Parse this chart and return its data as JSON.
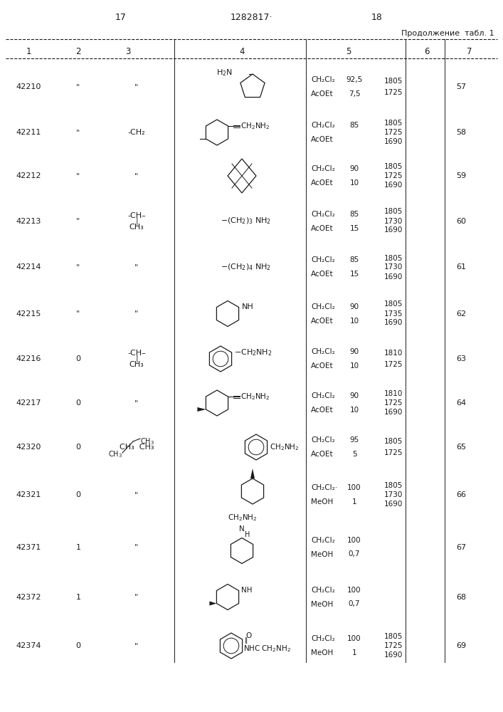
{
  "page_left": "17",
  "page_center": "1282817·",
  "page_right": "18",
  "continuation": "Продолжение  табл. 1",
  "col_headers": [
    "1",
    "2",
    "3",
    "4",
    "5",
    "6",
    "7"
  ],
  "bg_color": "#ffffff",
  "text_color": "#1a1a1a",
  "font_size": 8.0,
  "rows": [
    {
      "col1": "42210",
      "col2": "\"",
      "col3": "\"",
      "col4_shape": "cyclopentane_amine",
      "col5a": "CH₂Cl₂",
      "col5b": "AcOEt",
      "col5va": "92,5",
      "col5vb": "7,5",
      "col6a": "1805",
      "col6b": "1725",
      "col6c": "",
      "col7": "57"
    },
    {
      "col1": "42211",
      "col2": "\"",
      "col3": "-CH₂",
      "col4_shape": "cyclohex_stereo_CH2NH2",
      "col5a": "CH₂Cl₂",
      "col5b": "AcOEt",
      "col5va": "85",
      "col5vb": "",
      "col6a": "1805",
      "col6b": "1725",
      "col6c": "1690",
      "col7": "58"
    },
    {
      "col1": "42212",
      "col2": "\"",
      "col3": "\"",
      "col4_shape": "bicyclobutane_x",
      "col5a": "CH₂Cl₂",
      "col5b": "AcOEt",
      "col5va": "90",
      "col5vb": "10",
      "col6a": "1805",
      "col6b": "1725",
      "col6c": "1690",
      "col7": "59"
    },
    {
      "col1": "42213",
      "col2": "\"",
      "col3": "-CH–\n|\nCH₃",
      "col4_shape": "chain_3_NH2",
      "col5a": "CH₂Cl₂",
      "col5b": "AcOEt",
      "col5va": "85",
      "col5vb": "15",
      "col6a": "1805",
      "col6b": "1730",
      "col6c": "1690",
      "col7": "60"
    },
    {
      "col1": "42214",
      "col2": "\"",
      "col3": "\"",
      "col4_shape": "chain_4_NH2",
      "col5a": "CH₂Cl₂",
      "col5b": "AcOEt",
      "col5va": "85",
      "col5vb": "15",
      "col6a": "1805",
      "col6b": "1730",
      "col6c": "1690",
      "col7": "61"
    },
    {
      "col1": "42215",
      "col2": "\"",
      "col3": "\"",
      "col4_shape": "cyclohex_NH",
      "col5a": "CH₂Cl₂",
      "col5b": "AcOEt",
      "col5va": "90",
      "col5vb": "10",
      "col6a": "1805",
      "col6b": "1735",
      "col6c": "1690",
      "col7": "62"
    },
    {
      "col1": "42216",
      "col2": "0",
      "col3": "-CH–\n|\nCH₃",
      "col4_shape": "benzene_CH2NH2",
      "col5a": "CH₂Cl₂",
      "col5b": "AcOEt",
      "col5va": "90",
      "col5vb": "10",
      "col6a": "1810",
      "col6b": "1725",
      "col6c": "",
      "col7": "63"
    },
    {
      "col1": "42217",
      "col2": "0",
      "col3": "\"",
      "col4_shape": "cyclohex_wedge_CH2NH2",
      "col5a": "CH₂Cl₂",
      "col5b": "AcOEt",
      "col5va": "90",
      "col5vb": "10",
      "col6a": "1810",
      "col6b": "1725",
      "col6c": "1690",
      "col7": "64"
    },
    {
      "col1": "42320",
      "col2": "0",
      "col3": "CH₃  CH₃",
      "col4_shape": "benzene_circle_CH2NH2",
      "col5a": "CH₂Cl₂",
      "col5b": "AcOEt",
      "col5va": "95",
      "col5vb": "5",
      "col6a": "1805",
      "col6b": "1725",
      "col6c": "",
      "col7": "65"
    },
    {
      "col1": "42321",
      "col2": "0",
      "col3": "\"",
      "col4_shape": "cyclohex_axial_CH2NH2",
      "col5a": "CH₂Cl₂·",
      "col5b": "MeOH",
      "col5va": "100",
      "col5vb": "1",
      "col6a": "1805",
      "col6b": "1730",
      "col6c": "1690",
      "col7": "66"
    },
    {
      "col1": "42371",
      "col2": "1",
      "col3": "\"",
      "col4_shape": "piperidine_NH_top",
      "col5a": "CH₂Cl₂",
      "col5b": "MeOH",
      "col5va": "100",
      "col5vb": "0,7",
      "col6a": "",
      "col6b": "",
      "col6c": "",
      "col7": "67"
    },
    {
      "col1": "42372",
      "col2": "1",
      "col3": "\"",
      "col4_shape": "cyclohex_NH_right",
      "col5a": "CH₂Cl₂",
      "col5b": "MeOH",
      "col5va": "100",
      "col5vb": "0,7",
      "col6a": "",
      "col6b": "",
      "col6c": "",
      "col7": "68"
    },
    {
      "col1": "42374",
      "col2": "0",
      "col3": "\"",
      "col4_shape": "benzene_NHC_CH2NH2",
      "col5a": "CH₂Cl₂",
      "col5b": "MeOH",
      "col5va": "100",
      "col5vb": "1",
      "col6a": "1805",
      "col6b": "1725",
      "col6c": "1690",
      "col7": "69"
    }
  ]
}
